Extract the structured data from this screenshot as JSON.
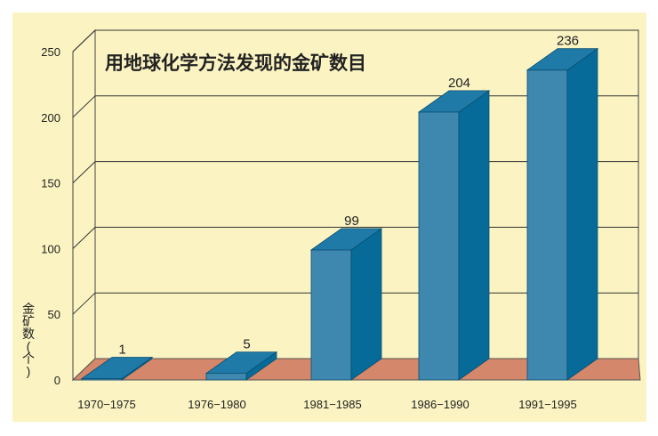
{
  "chart_data": {
    "type": "bar",
    "title": "用地球化学方法发现的金矿数目",
    "ylabel": "金矿数(个)",
    "xlabel": "",
    "categories": [
      "1970−1975",
      "1976−1980",
      "1981−1985",
      "1986−1990",
      "1991−1995"
    ],
    "values": [
      1,
      5,
      99,
      204,
      236
    ],
    "ylim": [
      0,
      250
    ],
    "yticks": [
      "0",
      "50",
      "100",
      "150",
      "200",
      "250"
    ],
    "grid": true,
    "colors": {
      "background": "#fbf4c2",
      "wall": "#fbf4c2",
      "floor": "#d4876a",
      "bar_front": "#3e87ae",
      "bar_side": "#066b98",
      "bar_top": "#1f7aa7",
      "grid": "#333333"
    }
  }
}
